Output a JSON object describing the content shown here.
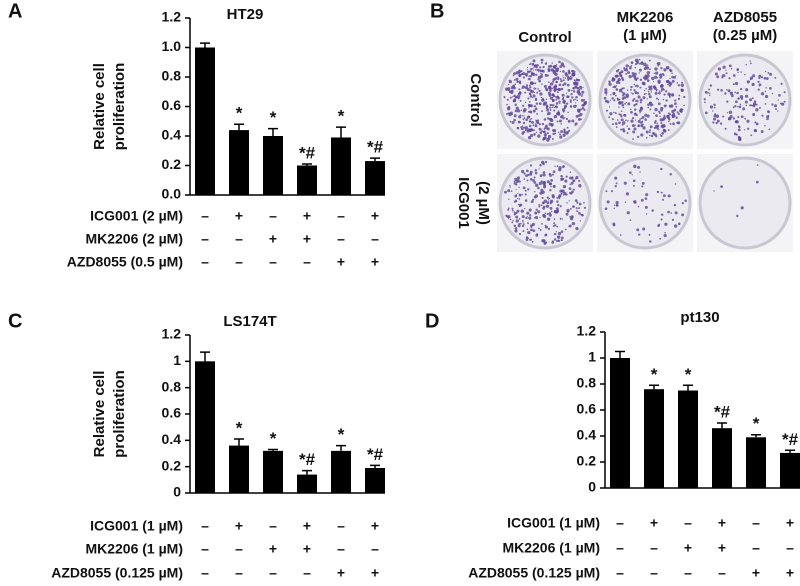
{
  "chart_data": [
    {
      "type": "bar",
      "panel": "A",
      "title": "HT29",
      "ylabel_lines": [
        "Relative cell",
        "proliferation"
      ],
      "color": "#000000",
      "values": [
        1.0,
        0.44,
        0.4,
        0.2,
        0.39,
        0.23
      ],
      "errors": [
        0.03,
        0.04,
        0.05,
        0.01,
        0.07,
        0.02
      ],
      "annotations": [
        null,
        "*",
        "*",
        "*#",
        "*",
        "*#"
      ],
      "ylim": [
        0,
        1.2
      ],
      "yticks": [
        {
          "value": 0,
          "label": "0.0"
        },
        0.2,
        0.4,
        0.6,
        0.8,
        {
          "value": 1,
          "label": "1.0"
        },
        1.2
      ],
      "treatments": [
        {
          "name": "ICG001 (2 µM)",
          "signs": [
            "–",
            "+",
            "–",
            "+",
            "–",
            "+"
          ]
        },
        {
          "name": "MK2206 (2 µM)",
          "signs": [
            "–",
            "–",
            "+",
            "+",
            "–",
            "–"
          ]
        },
        {
          "name": "AZD8055 (0.5 µM)",
          "signs": [
            "–",
            "–",
            "–",
            "–",
            "+",
            "+"
          ]
        }
      ]
    },
    {
      "type": "bar",
      "panel": "C",
      "title": "LS174T",
      "ylabel_lines": [
        "Relative cell",
        "proliferation"
      ],
      "color": "#000000",
      "values": [
        1.0,
        0.36,
        0.32,
        0.14,
        0.32,
        0.19
      ],
      "errors": [
        0.07,
        0.05,
        0.01,
        0.03,
        0.04,
        0.02
      ],
      "annotations": [
        null,
        "*",
        "*",
        "*#",
        "*",
        "*#"
      ],
      "ylim": [
        0,
        1.2
      ],
      "yticks": [
        0,
        0.2,
        0.4,
        0.6,
        0.8,
        1,
        1.2
      ],
      "treatments": [
        {
          "name": "ICG001 (1 µM)",
          "signs": [
            "–",
            "+",
            "–",
            "+",
            "–",
            "+"
          ]
        },
        {
          "name": "MK2206 (1 µM)",
          "signs": [
            "–",
            "–",
            "+",
            "+",
            "–",
            "–"
          ]
        },
        {
          "name": "AZD8055 (0.125 µM)",
          "signs": [
            "–",
            "–",
            "–",
            "–",
            "+",
            "+"
          ]
        }
      ]
    },
    {
      "type": "bar",
      "panel": "D",
      "title": "pt130",
      "color": "#000000",
      "values": [
        1.0,
        0.76,
        0.75,
        0.46,
        0.39,
        0.27
      ],
      "errors": [
        0.05,
        0.03,
        0.04,
        0.04,
        0.02,
        0.02
      ],
      "annotations": [
        null,
        "*",
        "*",
        "*#",
        "*",
        "*#"
      ],
      "ylim": [
        0,
        1.2
      ],
      "yticks": [
        0,
        0.2,
        0.4,
        0.6,
        0.8,
        1,
        1.2
      ],
      "treatments": [
        {
          "name": "ICG001 (1 µM)",
          "signs": [
            "–",
            "+",
            "–",
            "+",
            "–",
            "+"
          ]
        },
        {
          "name": "MK2206 (1 µM)",
          "signs": [
            "–",
            "–",
            "+",
            "+",
            "–",
            "–"
          ]
        },
        {
          "name": "AZD8055 (0.125 µM)",
          "signs": [
            "–",
            "–",
            "–",
            "–",
            "+",
            "+"
          ]
        }
      ]
    }
  ],
  "panel_b": {
    "panel": "B",
    "columns": [
      [
        "Control"
      ],
      [
        "MK2206",
        "(1 µM)"
      ],
      [
        "AZD8055",
        "(0.25 µM)"
      ]
    ],
    "rows": [
      [
        "Control"
      ],
      [
        "ICG001",
        "(2 µM)"
      ]
    ]
  }
}
